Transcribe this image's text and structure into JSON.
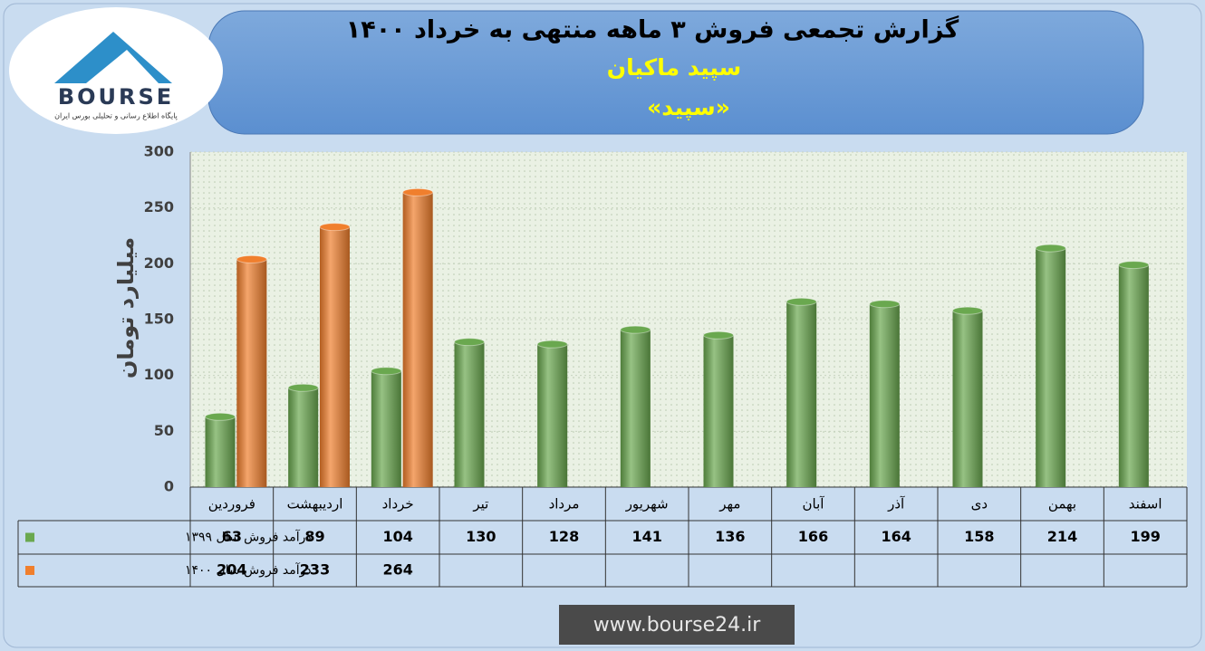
{
  "logo": {
    "text": "BOURSE",
    "tagline": "پایگاه اطلاع رسانی و تحلیلی بورس ایران"
  },
  "footer": "www.bourse24.ir",
  "chart_data": {
    "type": "bar",
    "title": "گزارش تجمعی فروش ۳ ماهه منتهی به خرداد ۱۴۰۰",
    "subtitle": "سپید ماکیان",
    "subtitle2": "«سپید»",
    "y_label": "میلیارد تومان",
    "categories": [
      "فروردین",
      "اردیبهشت",
      "خرداد",
      "تیر",
      "مرداد",
      "شهریور",
      "مهر",
      "آبان",
      "آذر",
      "دی",
      "بهمن",
      "اسفند"
    ],
    "series": [
      {
        "name": "درآمد فروش سال ۱۳۹۹",
        "color": "#6aa84f",
        "values": [
          63,
          89,
          104,
          130,
          128,
          141,
          136,
          166,
          164,
          158,
          214,
          199
        ]
      },
      {
        "name": "درآمد فروش سال ۱۴۰۰",
        "color": "#f07f2d",
        "values": [
          204,
          233,
          264,
          null,
          null,
          null,
          null,
          null,
          null,
          null,
          null,
          null
        ]
      }
    ],
    "ylim": [
      0,
      300
    ],
    "yticks": [
      0,
      50,
      100,
      150,
      200,
      250,
      300
    ],
    "grid": true
  }
}
